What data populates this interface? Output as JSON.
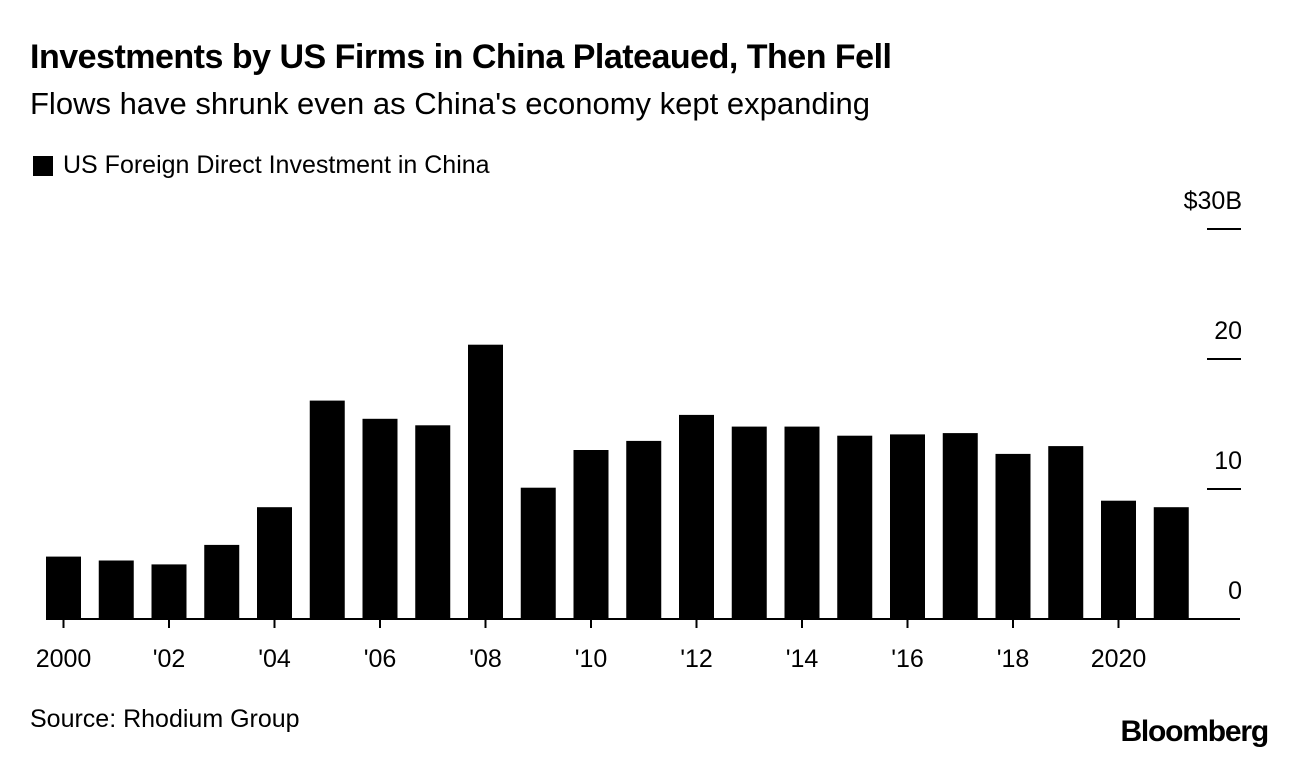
{
  "chart_data": {
    "type": "bar",
    "title": "Investments by US Firms in China Plateaued, Then Fell",
    "subtitle": "Flows have shrunk even as China's economy kept expanding",
    "legend": [
      {
        "label": "US Foreign Direct Investment in China",
        "color": "#000000"
      }
    ],
    "legend_position": "top-left",
    "categories": [
      "2000",
      "2001",
      "2002",
      "2003",
      "2004",
      "2005",
      "2006",
      "2007",
      "2008",
      "2009",
      "2010",
      "2011",
      "2012",
      "2013",
      "2014",
      "2015",
      "2016",
      "2017",
      "2018",
      "2019",
      "2020",
      "2021"
    ],
    "series": [
      {
        "name": "US Foreign Direct Investment in China",
        "color": "#000000",
        "values": [
          4.8,
          4.5,
          4.2,
          5.7,
          8.6,
          16.8,
          15.4,
          14.9,
          21.1,
          10.1,
          13.0,
          13.7,
          15.7,
          14.8,
          14.8,
          14.1,
          14.2,
          14.3,
          12.7,
          13.3,
          9.1,
          8.6
        ]
      }
    ],
    "x_tick_labels": [
      {
        "category": "2000",
        "label": "2000"
      },
      {
        "category": "2002",
        "label": "'02"
      },
      {
        "category": "2004",
        "label": "'04"
      },
      {
        "category": "2006",
        "label": "'06"
      },
      {
        "category": "2008",
        "label": "'08"
      },
      {
        "category": "2010",
        "label": "'10"
      },
      {
        "category": "2012",
        "label": "'12"
      },
      {
        "category": "2014",
        "label": "'14"
      },
      {
        "category": "2016",
        "label": "'16"
      },
      {
        "category": "2018",
        "label": "'18"
      },
      {
        "category": "2020",
        "label": "2020"
      }
    ],
    "y_ticks": [
      {
        "value": 0,
        "label": "0"
      },
      {
        "value": 10,
        "label": "10"
      },
      {
        "value": 20,
        "label": "20"
      },
      {
        "value": 30,
        "label": "$30B"
      }
    ],
    "ylim": [
      0,
      30
    ],
    "y_axis_side": "right",
    "grid": false,
    "xlabel": "",
    "ylabel": ""
  },
  "footer": {
    "source": "Source: Rhodium Group",
    "logo_text": "Bloomberg"
  }
}
